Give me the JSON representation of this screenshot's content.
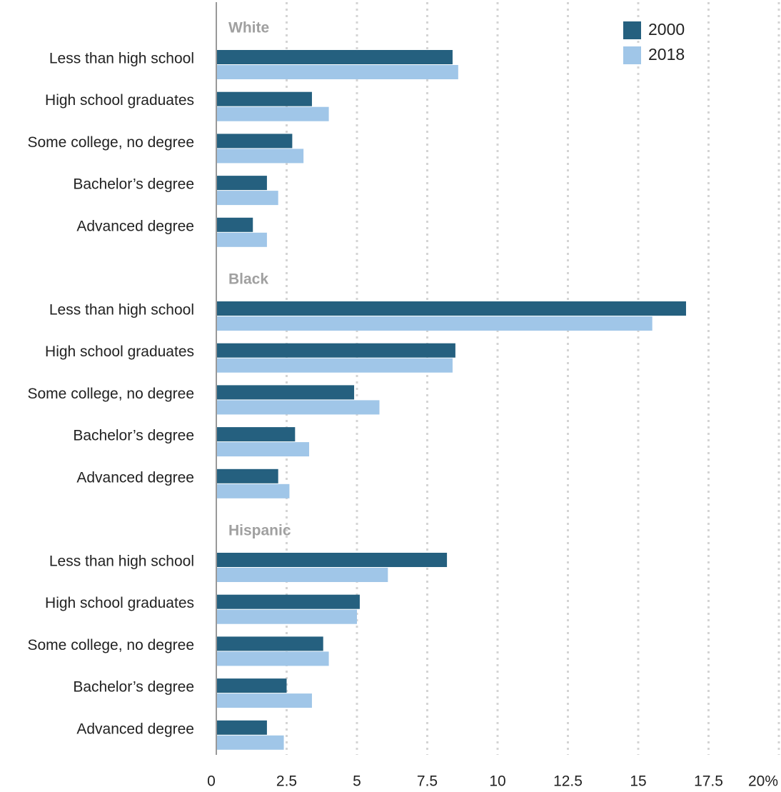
{
  "chart_data": {
    "type": "bar",
    "orientation": "horizontal",
    "grid": true,
    "legend_position": "top-right",
    "xlim": [
      0,
      20
    ],
    "x_ticks": [
      "0",
      "2.5",
      "5",
      "7.5",
      "10",
      "12.5",
      "15",
      "17.5",
      "20%"
    ],
    "series": [
      {
        "name": "2000",
        "color": "#25607f"
      },
      {
        "name": "2018",
        "color": "#a0c6e8"
      }
    ],
    "groups": [
      {
        "name": "White",
        "categories": [
          "Less than high school",
          "High school graduates",
          "Some college, no degree",
          "Bachelor’s degree",
          "Advanced degree"
        ],
        "values_2000": [
          8.4,
          3.4,
          2.7,
          1.8,
          1.3
        ],
        "values_2018": [
          8.6,
          4.0,
          3.1,
          2.2,
          1.8
        ]
      },
      {
        "name": "Black",
        "categories": [
          "Less than high school",
          "High school graduates",
          "Some college, no degree",
          "Bachelor’s degree",
          "Advanced degree"
        ],
        "values_2000": [
          16.7,
          8.5,
          4.9,
          2.8,
          2.2
        ],
        "values_2018": [
          15.5,
          8.4,
          5.8,
          3.3,
          2.6
        ]
      },
      {
        "name": "Hispanic",
        "categories": [
          "Less than high school",
          "High school graduates",
          "Some college, no degree",
          "Bachelor’s degree",
          "Advanced degree"
        ],
        "values_2000": [
          8.2,
          5.1,
          3.8,
          2.5,
          1.8
        ],
        "values_2018": [
          6.1,
          5.0,
          4.0,
          3.4,
          2.4
        ]
      }
    ]
  }
}
